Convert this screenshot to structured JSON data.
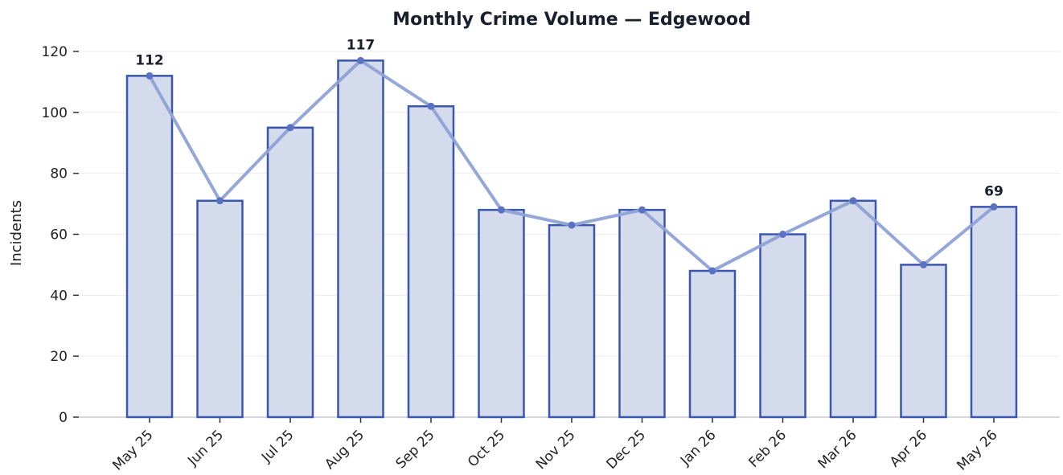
{
  "chart_data": {
    "type": "bar",
    "title": "Monthly Crime Volume — Edgewood",
    "xlabel": "",
    "ylabel": "Incidents",
    "categories": [
      "May 25",
      "Jun 25",
      "Jul 25",
      "Aug 25",
      "Sep 25",
      "Oct 25",
      "Nov 25",
      "Dec 25",
      "Jan 26",
      "Feb 26",
      "Mar 26",
      "Apr 26",
      "May 26"
    ],
    "values": [
      112,
      71,
      95,
      117,
      102,
      68,
      63,
      68,
      48,
      60,
      71,
      50,
      69
    ],
    "overlay": "line",
    "labeled_values": [
      {
        "category": "May 25",
        "value": 112
      },
      {
        "category": "Aug 25",
        "value": 117
      },
      {
        "category": "May 26",
        "value": 69
      }
    ],
    "ylim": [
      0,
      120
    ],
    "yticks": [
      0,
      20,
      40,
      60,
      80,
      100,
      120
    ],
    "grid": "horizontal",
    "legend": "none",
    "colors": {
      "bar_fill": "#d3dbec",
      "bar_stroke": "#3b56ad",
      "line": "#8fa2d6",
      "marker": "#5b72c4"
    }
  }
}
